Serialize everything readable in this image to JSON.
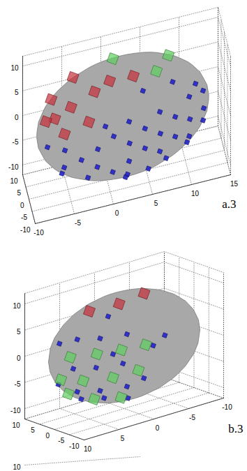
{
  "chart_data": [
    {
      "type": "scatter3d",
      "title": "a.3",
      "xlim": [
        -10,
        15
      ],
      "ylim": [
        -10,
        10
      ],
      "zlim": [
        -12,
        12
      ],
      "xticks": [
        -10,
        -5,
        0,
        5,
        10,
        15
      ],
      "yticks": [
        -10,
        -5,
        0,
        5,
        10
      ],
      "zticks": [
        -10,
        -5,
        0,
        5,
        10
      ],
      "grid": true,
      "surface": {
        "type": "sphere",
        "center": [
          2,
          0,
          0
        ],
        "radius": 11,
        "color": "#a8a8a8"
      },
      "series": [
        {
          "color": "#2323c8",
          "marker": "small_square",
          "points": [
            [
              2,
              -11,
              0
            ],
            [
              6,
              -10.2,
              0
            ],
            [
              10,
              -7.5,
              0
            ],
            [
              12,
              -4.6,
              0
            ],
            [
              -2,
              -10.2,
              0
            ],
            [
              -6,
              -7.5,
              0
            ],
            [
              -8,
              -4.6,
              0
            ],
            [
              2,
              -10.2,
              -4
            ],
            [
              6,
              -9.4,
              -4
            ],
            [
              10,
              -6.4,
              -4
            ],
            [
              -2,
              -9.4,
              -4
            ],
            [
              -6,
              -6.4,
              -4
            ],
            [
              2,
              -7.5,
              -8
            ],
            [
              7,
              -6.9,
              -7
            ],
            [
              -3,
              -6.9,
              -7
            ],
            [
              10,
              -2.8,
              -7
            ],
            [
              -6,
              -2.8,
              -7
            ],
            [
              2,
              -4.6,
              -10
            ],
            [
              5,
              -3.5,
              -10
            ],
            [
              2,
              -10.2,
              4
            ],
            [
              6,
              -9.4,
              4
            ],
            [
              10,
              -6.4,
              4
            ],
            [
              -1,
              -9.8,
              4
            ],
            [
              4,
              -7.3,
              8
            ],
            [
              8,
              -4.8,
              7
            ],
            [
              12,
              -3.5,
              3
            ],
            [
              12,
              -3.5,
              -3
            ],
            [
              4,
              -10.6,
              -2
            ],
            [
              0,
              -10.6,
              2
            ],
            [
              8,
              -9,
              2
            ],
            [
              8,
              -9,
              -2
            ],
            [
              -4,
              -9,
              -2
            ],
            [
              4,
              -10.6,
              2
            ],
            [
              0,
              -9,
              -6
            ],
            [
              11,
              -3.9,
              5
            ]
          ]
        },
        {
          "color": "#c8303a",
          "marker": "large_square",
          "points": [
            [
              -7,
              -3.9,
              5
            ],
            [
              -5,
              -4.8,
              7
            ],
            [
              -2,
              -4.9,
              9
            ],
            [
              -6,
              -6.9,
              3
            ],
            [
              -3,
              -8.4,
              5
            ],
            [
              0,
              -4.1,
              10
            ],
            [
              -8,
              -2.2,
              4
            ],
            [
              3,
              -4.5,
              10
            ],
            [
              -4,
              4.6,
              8
            ],
            [
              -7,
              2,
              6
            ]
          ]
        },
        {
          "color": "#60d060",
          "marker": "large_square",
          "points": [
            [
              6,
              -3.9,
              9.5
            ],
            [
              8,
              2,
              9
            ],
            [
              1,
              3.2,
              10.5
            ]
          ]
        }
      ]
    },
    {
      "type": "scatter3d",
      "title": "b.3",
      "xlim": [
        -10,
        10
      ],
      "ylim": [
        -10,
        10
      ],
      "zlim": [
        -12,
        12
      ],
      "xticks": [
        -10,
        -5,
        0,
        5,
        10
      ],
      "yticks": [
        -10,
        -5,
        0,
        5,
        10
      ],
      "zticks": [
        -10,
        -5,
        0,
        5,
        10
      ],
      "grid": true,
      "surface": {
        "type": "sphere",
        "center": [
          0,
          0,
          0
        ],
        "radius": 10,
        "color": "#a8a8a8"
      },
      "series": [
        {
          "color": "#2323c8",
          "marker": "small_square",
          "points": [
            [
              7,
              -7,
              0
            ],
            [
              9,
              -4,
              0
            ],
            [
              4,
              -9,
              0
            ],
            [
              0,
              -9.8,
              2
            ],
            [
              6,
              -6,
              5
            ],
            [
              6,
              -6,
              -5
            ],
            [
              8,
              -3,
              -5
            ],
            [
              3,
              -8,
              -5
            ],
            [
              3,
              -8,
              5
            ],
            [
              8,
              -3,
              5
            ],
            [
              5,
              -5,
              -7
            ],
            [
              2,
              -6,
              -8
            ],
            [
              7,
              -2,
              -7
            ],
            [
              9,
              1,
              -4
            ],
            [
              1,
              -9,
              -4
            ],
            [
              8,
              3,
              3
            ],
            [
              -2,
              -9,
              3
            ],
            [
              4,
              -4,
              8
            ],
            [
              5,
              -8,
              2
            ]
          ]
        },
        {
          "color": "#60d060",
          "marker": "large_square",
          "points": [
            [
              6.8,
              -6.8,
              2.5
            ],
            [
              9,
              -3,
              2
            ],
            [
              4,
              -8.5,
              2.5
            ],
            [
              1,
              -9.6,
              2.5
            ],
            [
              8,
              -5,
              -2.5
            ],
            [
              5,
              -8,
              -2.5
            ],
            [
              2,
              -9.5,
              -2
            ],
            [
              9.5,
              -1,
              -2.5
            ],
            [
              6,
              -4,
              -7
            ],
            [
              3,
              -6,
              -7.5
            ],
            [
              8,
              0,
              -6
            ]
          ]
        },
        {
          "color": "#c8303a",
          "marker": "large_square",
          "points": [
            [
              2,
              -3,
              9.4
            ],
            [
              -2,
              -2,
              9.6
            ],
            [
              5,
              0,
              8.6
            ]
          ]
        }
      ]
    },
    {
      "type": "scatter3d",
      "zticks": [
        10
      ],
      "grid": true
    }
  ]
}
